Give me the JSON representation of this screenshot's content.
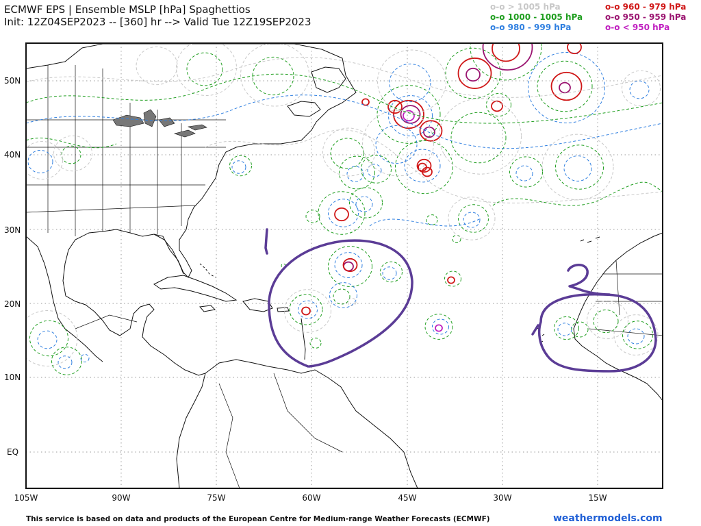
{
  "header": {
    "title": "ECMWF EPS | Ensemble MSLP [hPa] Spaghettios",
    "subtitle": "Init: 12Z04SEP2023 -- [360] hr --> Valid Tue 12Z19SEP2023"
  },
  "legend": {
    "items": [
      {
        "label": "o-o > 1005 hPa",
        "color": "#c8c8c8"
      },
      {
        "label": "o-o 1000 - 1005 hPa",
        "color": "#1f9e1f"
      },
      {
        "label": "o-o 980 - 999 hPa",
        "color": "#2f7fe0"
      },
      {
        "label": "o-o 960 - 979 hPa",
        "color": "#d01818"
      },
      {
        "label": "o-o 950 - 959 hPa",
        "color": "#9a1470"
      },
      {
        "label": "o-o < 950 hPa",
        "color": "#c020c0"
      }
    ]
  },
  "map": {
    "lat_labels": [
      "50N",
      "40N",
      "30N",
      "20N",
      "10N",
      "EQ"
    ],
    "lon_labels": [
      "105W",
      "90W",
      "75W",
      "60W",
      "45W",
      "30W",
      "15W"
    ],
    "annotation_color": "#5b3c96"
  },
  "footer": {
    "note": "This service is based on data and products of the European Centre for Medium-range Weather Forecasts (ECMWF)",
    "site": "weathermodels.com"
  }
}
